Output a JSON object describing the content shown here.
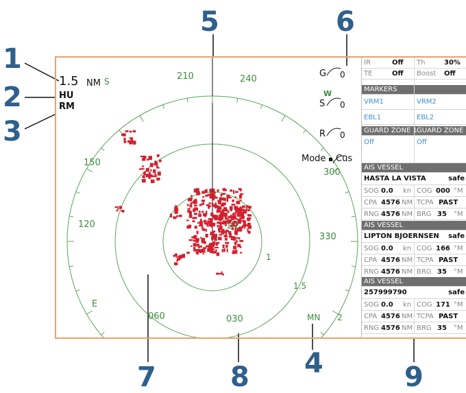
{
  "callouts": [
    "1",
    "2",
    "3",
    "4",
    "5",
    "6",
    "7",
    "8",
    "9"
  ],
  "radar": {
    "range": "1.5",
    "range_unit": "NM",
    "heading_mode": "HU",
    "motion_mode": "RM",
    "compass_letters": [
      "S",
      "S",
      "W",
      "E"
    ],
    "bearing_labels": [
      "210",
      "240",
      "150",
      "300",
      "120",
      "330",
      "060",
      "030"
    ],
    "ring_labels": [
      "1/2",
      "1",
      "1.5",
      "2"
    ],
    "north_label": "MN",
    "controls": [
      {
        "key": "G",
        "value": "0"
      },
      {
        "key": "S",
        "value": "0"
      },
      {
        "key": "R",
        "value": "0"
      }
    ],
    "mode_label": "Mode",
    "mode_value": "Cus",
    "colors": {
      "echo": "#d4202e",
      "rings": "#5aa35a",
      "frame": "#e8a26a",
      "callout": "#2f5f8c"
    }
  },
  "panel": {
    "top": [
      {
        "label": "IR",
        "value": "Off",
        "label2": "Th",
        "value2": "30%"
      },
      {
        "label": "TE",
        "value": "Off",
        "label2": "Boost",
        "value2": "Off"
      }
    ],
    "markers_header": "MARKERS",
    "markers": [
      [
        "VRM1",
        "VRM2"
      ],
      [
        "EBL1",
        "EBL2"
      ]
    ],
    "guard_zone_1": "GUARD ZONE 1",
    "guard_zone_2": "GUARD ZONE 2",
    "guard_values": [
      "Off",
      "Off"
    ],
    "ais": [
      {
        "header": "AIS VESSEL",
        "name": "HASTA LA VISTA",
        "status": "safe",
        "sog": "0.0",
        "sog_unit": "kn",
        "cog": "000",
        "cog_unit": "°M",
        "cpa": "4576",
        "cpa_unit": "NM",
        "tcpa": "PAST",
        "rng": "4576",
        "rng_unit": "NM",
        "brg": "35",
        "brg_unit": "°M"
      },
      {
        "header": "AIS VESSEL",
        "name": "LIPTON BJOERNSEN",
        "status": "safe",
        "sog": "0.0",
        "sog_unit": "kn",
        "cog": "166",
        "cog_unit": "°M",
        "cpa": "4576",
        "cpa_unit": "NM",
        "tcpa": "PAST",
        "rng": "4576",
        "rng_unit": "NM",
        "brg": "35",
        "brg_unit": "°M"
      },
      {
        "header": "AIS VESSEL",
        "name": "257999790",
        "status": "safe",
        "sog": "0.0",
        "sog_unit": "kn",
        "cog": "171",
        "cog_unit": "°M",
        "cpa": "4576",
        "cpa_unit": "NM",
        "tcpa": "PAST",
        "rng": "4576",
        "rng_unit": "NM",
        "brg": "35",
        "brg_unit": "°M"
      }
    ],
    "field_labels": {
      "sog": "SOG",
      "cog": "COG",
      "cpa": "CPA",
      "tcpa": "TCPA",
      "rng": "RNG",
      "brg": "BRG"
    }
  }
}
